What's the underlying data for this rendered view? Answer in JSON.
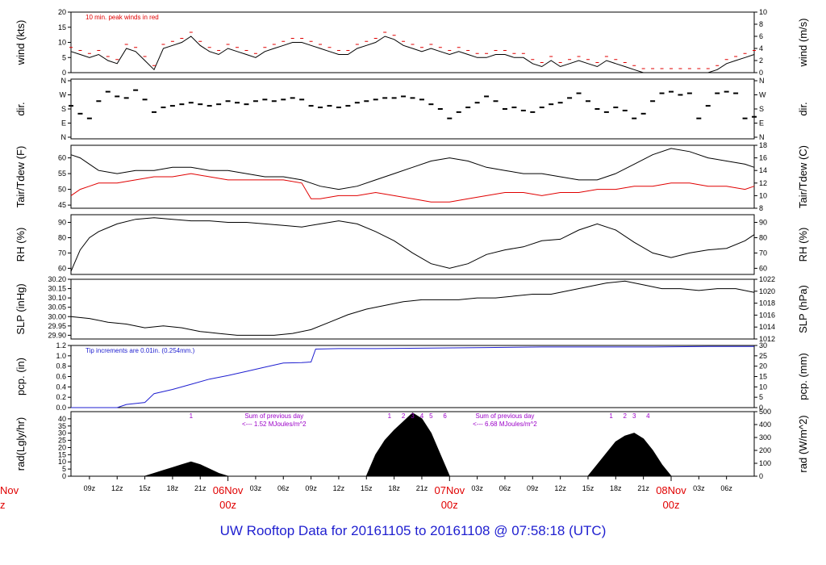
{
  "title": "UW Rooftop Data for 20161105  to  20161108 @ 07:58:18  (UTC)",
  "colors": {
    "black": "#000000",
    "red": "#e00000",
    "blue": "#1f1fd0",
    "purple": "#9b00c8",
    "axisRed": "#e00000"
  },
  "x_axis": {
    "hour_ticks": [
      "09z",
      "12z",
      "15z",
      "18z",
      "21z",
      "03z",
      "06z",
      "09z",
      "12z",
      "15z",
      "18z",
      "21z",
      "03z",
      "06z",
      "09z",
      "12z",
      "15z",
      "18z",
      "21z",
      "03z",
      "06z"
    ],
    "hour_values": [
      9,
      12,
      15,
      18,
      21,
      27,
      30,
      33,
      36,
      39,
      42,
      45,
      51,
      54,
      57,
      60,
      63,
      66,
      69,
      75,
      78
    ],
    "day_labels": [
      {
        "date": "06Nov",
        "zulu": "00z",
        "hour": 24
      },
      {
        "date": "07Nov",
        "zulu": "00z",
        "hour": 48
      },
      {
        "date": "08Nov",
        "zulu": "00z",
        "hour": 72
      }
    ],
    "left_cut_date": "Nov",
    "left_cut_zulu": "z",
    "range_hours": [
      7,
      81
    ]
  },
  "chart_data": [
    {
      "type": "line",
      "id": "wind",
      "ylabel": "wind (kts)",
      "ylabel_right": "wind (m/s)",
      "ylim": [
        0,
        20
      ],
      "yticks": [
        "0",
        "5",
        "10",
        "15",
        "20"
      ],
      "yticks_right": [
        "0",
        "2",
        "4",
        "6",
        "8",
        "10"
      ],
      "annotation": "10 min. peak winds in red",
      "series": [
        {
          "values_x": [
            7,
            8,
            9,
            10,
            11,
            12,
            13,
            14,
            15,
            16,
            17,
            18,
            19,
            20,
            21,
            22,
            23,
            24,
            25,
            26,
            27,
            28,
            29,
            30,
            31,
            32,
            33,
            34,
            35,
            36,
            37,
            38,
            39,
            40,
            41,
            42,
            43,
            44,
            45,
            46,
            47,
            48,
            49,
            50,
            51,
            52,
            53,
            54,
            55,
            56,
            57,
            58,
            59,
            60,
            61,
            62,
            63,
            64,
            65,
            66,
            67,
            68,
            69,
            70,
            71,
            72,
            73,
            74,
            75,
            76,
            77,
            78,
            79,
            80,
            81
          ],
          "values_y": [
            7,
            6,
            5,
            6,
            4,
            3,
            8,
            7,
            4,
            1,
            8,
            9,
            10,
            12,
            9,
            7,
            6,
            8,
            7,
            6,
            5,
            7,
            8,
            9,
            10,
            10,
            9,
            8,
            7,
            6,
            6,
            8,
            9,
            10,
            12,
            11,
            9,
            8,
            7,
            8,
            7,
            6,
            7,
            6,
            5,
            5,
            6,
            6,
            5,
            5,
            3,
            2,
            4,
            2,
            3,
            4,
            3,
            2,
            4,
            3,
            2,
            1,
            0,
            0,
            0,
            0,
            0,
            0,
            0,
            0,
            1,
            3,
            4,
            5,
            6
          ]
        }
      ]
    },
    {
      "type": "scatter",
      "id": "dir",
      "ylabel": "dir.",
      "ylabel_right": "dir.",
      "yticks": [
        "N",
        "E",
        "S",
        "W",
        "N"
      ],
      "series": [
        {
          "values_x": [
            7,
            8,
            9,
            10,
            11,
            12,
            13,
            14,
            15,
            16,
            17,
            18,
            19,
            20,
            21,
            22,
            23,
            24,
            25,
            26,
            27,
            28,
            29,
            30,
            31,
            32,
            33,
            34,
            35,
            36,
            37,
            38,
            39,
            40,
            41,
            42,
            43,
            44,
            45,
            46,
            47,
            48,
            49,
            50,
            51,
            52,
            53,
            54,
            55,
            56,
            57,
            58,
            59,
            60,
            61,
            62,
            63,
            64,
            65,
            66,
            67,
            68,
            69,
            70,
            71,
            72,
            73,
            74,
            75,
            76,
            77,
            78,
            79,
            80,
            81
          ],
          "values_y": [
            200,
            150,
            120,
            230,
            290,
            260,
            250,
            300,
            240,
            160,
            190,
            200,
            210,
            220,
            210,
            200,
            210,
            230,
            220,
            210,
            230,
            240,
            230,
            240,
            250,
            240,
            200,
            190,
            200,
            190,
            200,
            220,
            230,
            240,
            250,
            250,
            260,
            250,
            240,
            210,
            180,
            120,
            160,
            190,
            220,
            260,
            230,
            180,
            190,
            170,
            160,
            190,
            210,
            220,
            250,
            280,
            230,
            180,
            160,
            190,
            170,
            120,
            150,
            230,
            280,
            290,
            270,
            280,
            120,
            200,
            280,
            290,
            280,
            120,
            130
          ]
        }
      ]
    },
    {
      "type": "line",
      "id": "temp",
      "ylabel": "Tair/Tdew (F)",
      "ylabel_right": "Tair/Tdew (C)",
      "ylim": [
        44,
        64
      ],
      "yticks": [
        "45",
        "50",
        "55",
        "60"
      ],
      "yticks_right": [
        "8",
        "10",
        "12",
        "14",
        "16",
        "18"
      ],
      "series": [
        {
          "name": "Tair",
          "values_x": [
            7,
            8,
            9,
            10,
            12,
            14,
            16,
            18,
            20,
            22,
            24,
            26,
            28,
            30,
            32,
            34,
            36,
            38,
            40,
            42,
            44,
            46,
            48,
            50,
            52,
            54,
            56,
            58,
            60,
            62,
            64,
            66,
            68,
            70,
            72,
            74,
            76,
            78,
            80,
            81
          ],
          "values_y": [
            61,
            60,
            58,
            56,
            55,
            56,
            56,
            57,
            57,
            56,
            56,
            55,
            54,
            54,
            53,
            51,
            50,
            51,
            53,
            55,
            57,
            59,
            60,
            59,
            57,
            56,
            55,
            55,
            54,
            53,
            53,
            55,
            58,
            61,
            63,
            62,
            60,
            59,
            58,
            57
          ]
        },
        {
          "name": "Tdew",
          "values_x": [
            7,
            8,
            9,
            10,
            12,
            14,
            16,
            18,
            20,
            22,
            24,
            26,
            28,
            30,
            32,
            33,
            34,
            36,
            38,
            40,
            42,
            44,
            46,
            48,
            50,
            52,
            54,
            56,
            58,
            60,
            62,
            64,
            66,
            68,
            70,
            72,
            74,
            76,
            78,
            80,
            81
          ],
          "values_y": [
            48,
            50,
            51,
            52,
            52,
            53,
            54,
            54,
            55,
            54,
            53,
            53,
            53,
            53,
            52,
            47,
            47,
            48,
            48,
            49,
            48,
            47,
            46,
            46,
            47,
            48,
            49,
            49,
            48,
            49,
            49,
            50,
            50,
            51,
            51,
            52,
            52,
            51,
            51,
            50,
            51
          ]
        }
      ]
    },
    {
      "type": "line",
      "id": "rh",
      "ylabel": "RH (%)",
      "ylabel_right": "RH (%)",
      "ylim": [
        56,
        95
      ],
      "yticks": [
        "60",
        "70",
        "80",
        "90"
      ],
      "series": [
        {
          "values_x": [
            7,
            8,
            9,
            10,
            12,
            14,
            16,
            18,
            20,
            22,
            24,
            26,
            28,
            30,
            32,
            34,
            36,
            38,
            40,
            42,
            44,
            46,
            48,
            50,
            52,
            54,
            56,
            58,
            60,
            62,
            64,
            66,
            68,
            70,
            72,
            74,
            76,
            78,
            80,
            81
          ],
          "values_y": [
            58,
            72,
            80,
            84,
            89,
            92,
            93,
            92,
            91,
            91,
            90,
            90,
            89,
            88,
            87,
            89,
            91,
            89,
            84,
            78,
            70,
            63,
            60,
            63,
            69,
            72,
            74,
            78,
            79,
            85,
            89,
            85,
            77,
            70,
            67,
            70,
            72,
            73,
            78,
            82
          ]
        }
      ]
    },
    {
      "type": "line",
      "id": "slp",
      "ylabel": "SLP (inHg)",
      "ylabel_right": "SLP (hPa)",
      "ylim": [
        29.88,
        30.2
      ],
      "yticks": [
        "29.90",
        "29.95",
        "30.00",
        "30.05",
        "30.10",
        "30.15",
        "30.20"
      ],
      "yticks_right": [
        "1012",
        "1014",
        "1016",
        "1018",
        "1020",
        "1022"
      ],
      "series": [
        {
          "values_x": [
            7,
            9,
            11,
            13,
            15,
            17,
            19,
            21,
            23,
            25,
            27,
            29,
            31,
            33,
            35,
            37,
            39,
            41,
            43,
            45,
            47,
            49,
            51,
            53,
            55,
            57,
            59,
            61,
            63,
            65,
            67,
            69,
            71,
            73,
            75,
            77,
            79,
            81
          ],
          "values_y": [
            30.0,
            29.99,
            29.97,
            29.96,
            29.94,
            29.95,
            29.94,
            29.92,
            29.91,
            29.9,
            29.9,
            29.9,
            29.91,
            29.93,
            29.97,
            30.01,
            30.04,
            30.06,
            30.08,
            30.09,
            30.09,
            30.09,
            30.1,
            30.1,
            30.11,
            30.12,
            30.12,
            30.14,
            30.16,
            30.18,
            30.19,
            30.17,
            30.15,
            30.15,
            30.14,
            30.15,
            30.15,
            30.13
          ]
        }
      ]
    },
    {
      "type": "line",
      "id": "pcp",
      "ylabel": "pcp. (in)",
      "ylabel_right": "pcp. (mm)",
      "ylim": [
        0,
        1.2
      ],
      "yticks": [
        "0.0",
        "0.2",
        "0.4",
        "0.6",
        "0.8",
        "1.0",
        "1.2"
      ],
      "yticks_right": [
        "0",
        "5",
        "10",
        "15",
        "20",
        "25",
        "30"
      ],
      "annotation": "Tip increments are 0.01in. (0.254mm.)",
      "series": [
        {
          "values_x": [
            7,
            12,
            13,
            15,
            16,
            18,
            20,
            22,
            24,
            26,
            28,
            30,
            32,
            33,
            33.5,
            36,
            40,
            46,
            52,
            58,
            64,
            70,
            76,
            81
          ],
          "values_y": [
            0,
            0,
            0.06,
            0.1,
            0.27,
            0.35,
            0.45,
            0.55,
            0.62,
            0.7,
            0.78,
            0.86,
            0.87,
            0.88,
            1.13,
            1.14,
            1.14,
            1.15,
            1.16,
            1.17,
            1.17,
            1.17,
            1.18,
            1.18
          ]
        }
      ]
    },
    {
      "type": "area",
      "id": "rad",
      "ylabel": "rad(Lgly/hr)",
      "ylabel_right": "rad (W/m^2)",
      "ylim": [
        0,
        45
      ],
      "yticks": [
        "0",
        "5",
        "10",
        "15",
        "20",
        "25",
        "30",
        "35",
        "40"
      ],
      "yticks_right": [
        "0",
        "100",
        "200",
        "300",
        "400",
        "500"
      ],
      "annotations": [
        {
          "text": "1",
          "hour": 20
        },
        {
          "text": "Sum of previous day",
          "hour": 29
        },
        {
          "text": "<--- 1.52 MJoules/m^2",
          "hour": 29
        },
        {
          "text": "1",
          "hour": 41.5
        },
        {
          "text": "2",
          "hour": 43
        },
        {
          "text": "3",
          "hour": 44
        },
        {
          "text": "4",
          "hour": 45
        },
        {
          "text": "5",
          "hour": 46
        },
        {
          "text": "6",
          "hour": 47.5
        },
        {
          "text": "Sum of previous day",
          "hour": 54
        },
        {
          "text": "<--- 6.68 MJoules/m^2",
          "hour": 54
        },
        {
          "text": "1",
          "hour": 65.5
        },
        {
          "text": "2",
          "hour": 67
        },
        {
          "text": "3",
          "hour": 68
        },
        {
          "text": "4",
          "hour": 69.5
        }
      ],
      "series": [
        {
          "values_x": [
            7,
            15,
            16,
            17,
            18,
            19,
            20,
            21,
            22,
            23,
            24,
            39,
            40,
            41,
            42,
            43,
            44,
            45,
            46,
            47,
            48,
            63,
            64,
            65,
            66,
            67,
            68,
            69,
            70,
            71,
            72,
            81
          ],
          "values_y": [
            0,
            0,
            2,
            4,
            6,
            8,
            10,
            8,
            5,
            2,
            0,
            0,
            15,
            25,
            32,
            38,
            44,
            40,
            30,
            15,
            0,
            0,
            8,
            16,
            24,
            28,
            30,
            26,
            18,
            8,
            0,
            0
          ]
        }
      ]
    }
  ]
}
